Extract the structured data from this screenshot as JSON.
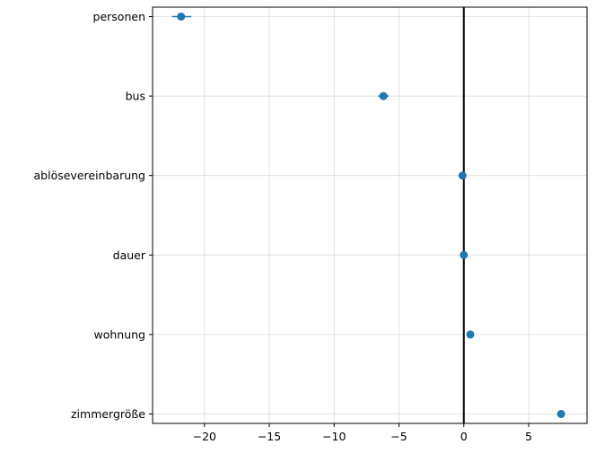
{
  "chart_data": {
    "type": "scatter",
    "title": "",
    "xlabel": "",
    "ylabel": "",
    "xlim": [
      -24.0,
      9.5
    ],
    "xticks": [
      -20,
      -15,
      -10,
      -5,
      0,
      5
    ],
    "xtick_labels": [
      "−20",
      "−15",
      "−10",
      "−5",
      "0",
      "5"
    ],
    "categories": [
      "personen",
      "bus",
      "ablösevereinbarung",
      "dauer",
      "wohnung",
      "zimmergröße"
    ],
    "values": [
      -21.8,
      -6.2,
      -0.1,
      0.0,
      0.5,
      7.5
    ],
    "error_low": [
      -22.5,
      -6.6,
      -0.3,
      -0.1,
      0.4,
      7.4
    ],
    "error_high": [
      -21.0,
      -5.8,
      0.1,
      0.1,
      0.6,
      7.6
    ],
    "reference_line_x": 0,
    "grid": true,
    "colors": {
      "point": "#1f77b4",
      "reference_line": "#000000"
    }
  }
}
